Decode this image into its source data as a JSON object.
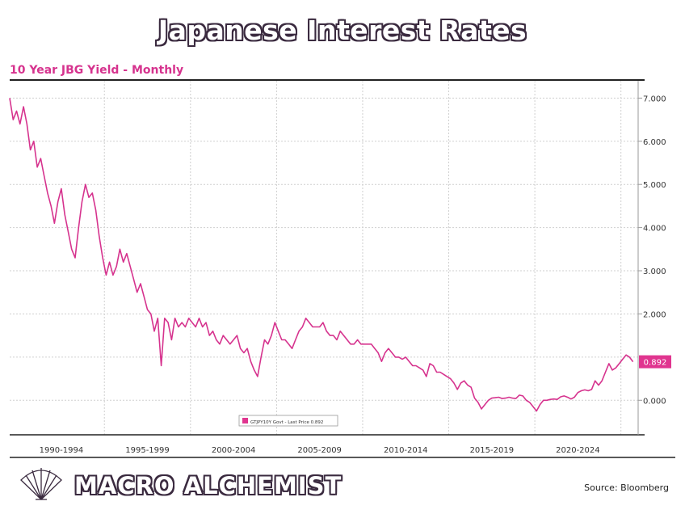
{
  "header": {
    "title": "Japanese Interest Rates",
    "subtitle": "10 Year JBG Yield - Monthly"
  },
  "footer": {
    "brand": "MACRO ALCHEMIST",
    "source": "Source: Bloomberg",
    "logo_icon": "shell-logo-icon"
  },
  "colors": {
    "line": "#d6338e",
    "accent": "#e0358f",
    "grid": "#cfcfcf"
  },
  "chart_data": {
    "type": "line",
    "title": "Japanese Interest Rates",
    "subtitle": "10 Year JBG Yield - Monthly",
    "ylim": [
      -0.8,
      7.4
    ],
    "xlim": [
      1989.0,
      2025.5
    ],
    "y_ticks": [
      {
        "value": 7.0,
        "label": "7.000"
      },
      {
        "value": 6.0,
        "label": "6.000"
      },
      {
        "value": 5.0,
        "label": "5.000"
      },
      {
        "value": 4.0,
        "label": "4.000"
      },
      {
        "value": 3.0,
        "label": "3.000"
      },
      {
        "value": 2.0,
        "label": "2.000"
      },
      {
        "value": 0.0,
        "label": "0.000"
      }
    ],
    "x_bands": [
      {
        "start": 1989.5,
        "label": "1990-1994"
      },
      {
        "start": 1994.5,
        "label": "1995-1999"
      },
      {
        "start": 1999.5,
        "label": "2000-2004"
      },
      {
        "start": 2004.5,
        "label": "2005-2009"
      },
      {
        "start": 2009.5,
        "label": "2010-2014"
      },
      {
        "start": 2014.5,
        "label": "2015-2019"
      },
      {
        "start": 2019.5,
        "label": "2020-2024"
      }
    ],
    "x_end": 2024.5,
    "grid": true,
    "last_value_label": "0.892",
    "legend": {
      "text": "GTJPY10Y Govt - Last Price 0.892",
      "placement": "bottom-center"
    },
    "series": [
      {
        "points": [
          [
            1989.0,
            7.0
          ],
          [
            1989.2,
            6.5
          ],
          [
            1989.4,
            6.7
          ],
          [
            1989.6,
            6.4
          ],
          [
            1989.8,
            6.8
          ],
          [
            1990.0,
            6.4
          ],
          [
            1990.2,
            5.8
          ],
          [
            1990.4,
            6.0
          ],
          [
            1990.6,
            5.4
          ],
          [
            1990.8,
            5.6
          ],
          [
            1991.0,
            5.2
          ],
          [
            1991.2,
            4.8
          ],
          [
            1991.4,
            4.5
          ],
          [
            1991.6,
            4.1
          ],
          [
            1991.8,
            4.6
          ],
          [
            1992.0,
            4.9
          ],
          [
            1992.2,
            4.3
          ],
          [
            1992.4,
            3.9
          ],
          [
            1992.6,
            3.5
          ],
          [
            1992.8,
            3.3
          ],
          [
            1993.0,
            4.0
          ],
          [
            1993.2,
            4.6
          ],
          [
            1993.4,
            5.0
          ],
          [
            1993.6,
            4.7
          ],
          [
            1993.8,
            4.8
          ],
          [
            1994.0,
            4.4
          ],
          [
            1994.2,
            3.8
          ],
          [
            1994.4,
            3.3
          ],
          [
            1994.6,
            2.9
          ],
          [
            1994.8,
            3.2
          ],
          [
            1995.0,
            2.9
          ],
          [
            1995.2,
            3.1
          ],
          [
            1995.4,
            3.5
          ],
          [
            1995.6,
            3.2
          ],
          [
            1995.8,
            3.4
          ],
          [
            1996.0,
            3.1
          ],
          [
            1996.2,
            2.8
          ],
          [
            1996.4,
            2.5
          ],
          [
            1996.6,
            2.7
          ],
          [
            1996.8,
            2.4
          ],
          [
            1997.0,
            2.1
          ],
          [
            1997.2,
            2.0
          ],
          [
            1997.4,
            1.6
          ],
          [
            1997.6,
            1.9
          ],
          [
            1997.8,
            0.8
          ],
          [
            1998.0,
            1.9
          ],
          [
            1998.2,
            1.8
          ],
          [
            1998.4,
            1.4
          ],
          [
            1998.6,
            1.9
          ],
          [
            1998.8,
            1.7
          ],
          [
            1999.0,
            1.8
          ],
          [
            1999.2,
            1.7
          ],
          [
            1999.4,
            1.9
          ],
          [
            1999.6,
            1.8
          ],
          [
            1999.8,
            1.7
          ],
          [
            2000.0,
            1.9
          ],
          [
            2000.2,
            1.7
          ],
          [
            2000.4,
            1.8
          ],
          [
            2000.6,
            1.5
          ],
          [
            2000.8,
            1.6
          ],
          [
            2001.0,
            1.4
          ],
          [
            2001.2,
            1.3
          ],
          [
            2001.4,
            1.5
          ],
          [
            2001.6,
            1.4
          ],
          [
            2001.8,
            1.3
          ],
          [
            2002.0,
            1.4
          ],
          [
            2002.2,
            1.5
          ],
          [
            2002.4,
            1.2
          ],
          [
            2002.6,
            1.1
          ],
          [
            2002.8,
            1.2
          ],
          [
            2003.0,
            0.9
          ],
          [
            2003.2,
            0.7
          ],
          [
            2003.4,
            0.55
          ],
          [
            2003.6,
            1.0
          ],
          [
            2003.8,
            1.4
          ],
          [
            2004.0,
            1.3
          ],
          [
            2004.2,
            1.5
          ],
          [
            2004.4,
            1.8
          ],
          [
            2004.6,
            1.6
          ],
          [
            2004.8,
            1.4
          ],
          [
            2005.0,
            1.4
          ],
          [
            2005.2,
            1.3
          ],
          [
            2005.4,
            1.2
          ],
          [
            2005.6,
            1.4
          ],
          [
            2005.8,
            1.6
          ],
          [
            2006.0,
            1.7
          ],
          [
            2006.2,
            1.9
          ],
          [
            2006.4,
            1.8
          ],
          [
            2006.6,
            1.7
          ],
          [
            2006.8,
            1.7
          ],
          [
            2007.0,
            1.7
          ],
          [
            2007.2,
            1.8
          ],
          [
            2007.4,
            1.6
          ],
          [
            2007.6,
            1.5
          ],
          [
            2007.8,
            1.5
          ],
          [
            2008.0,
            1.4
          ],
          [
            2008.2,
            1.6
          ],
          [
            2008.4,
            1.5
          ],
          [
            2008.6,
            1.4
          ],
          [
            2008.8,
            1.3
          ],
          [
            2009.0,
            1.3
          ],
          [
            2009.2,
            1.4
          ],
          [
            2009.4,
            1.3
          ],
          [
            2009.6,
            1.3
          ],
          [
            2009.8,
            1.3
          ],
          [
            2010.0,
            1.3
          ],
          [
            2010.2,
            1.2
          ],
          [
            2010.4,
            1.1
          ],
          [
            2010.6,
            0.9
          ],
          [
            2010.8,
            1.1
          ],
          [
            2011.0,
            1.2
          ],
          [
            2011.2,
            1.1
          ],
          [
            2011.4,
            1.0
          ],
          [
            2011.6,
            1.0
          ],
          [
            2011.8,
            0.95
          ],
          [
            2012.0,
            1.0
          ],
          [
            2012.2,
            0.9
          ],
          [
            2012.4,
            0.8
          ],
          [
            2012.6,
            0.8
          ],
          [
            2012.8,
            0.75
          ],
          [
            2013.0,
            0.7
          ],
          [
            2013.2,
            0.55
          ],
          [
            2013.4,
            0.85
          ],
          [
            2013.6,
            0.8
          ],
          [
            2013.8,
            0.65
          ],
          [
            2014.0,
            0.65
          ],
          [
            2014.2,
            0.6
          ],
          [
            2014.4,
            0.55
          ],
          [
            2014.6,
            0.5
          ],
          [
            2014.8,
            0.4
          ],
          [
            2015.0,
            0.25
          ],
          [
            2015.2,
            0.4
          ],
          [
            2015.4,
            0.45
          ],
          [
            2015.6,
            0.35
          ],
          [
            2015.8,
            0.3
          ],
          [
            2016.0,
            0.05
          ],
          [
            2016.2,
            -0.05
          ],
          [
            2016.4,
            -0.2
          ],
          [
            2016.6,
            -0.1
          ],
          [
            2016.8,
            0.0
          ],
          [
            2017.0,
            0.05
          ],
          [
            2017.2,
            0.06
          ],
          [
            2017.4,
            0.07
          ],
          [
            2017.6,
            0.04
          ],
          [
            2017.8,
            0.05
          ],
          [
            2018.0,
            0.07
          ],
          [
            2018.2,
            0.05
          ],
          [
            2018.4,
            0.04
          ],
          [
            2018.6,
            0.12
          ],
          [
            2018.8,
            0.1
          ],
          [
            2019.0,
            0.0
          ],
          [
            2019.2,
            -0.05
          ],
          [
            2019.4,
            -0.15
          ],
          [
            2019.6,
            -0.25
          ],
          [
            2019.8,
            -0.1
          ],
          [
            2020.0,
            0.0
          ],
          [
            2020.2,
            0.0
          ],
          [
            2020.4,
            0.02
          ],
          [
            2020.6,
            0.03
          ],
          [
            2020.8,
            0.02
          ],
          [
            2021.0,
            0.08
          ],
          [
            2021.2,
            0.1
          ],
          [
            2021.4,
            0.07
          ],
          [
            2021.6,
            0.03
          ],
          [
            2021.8,
            0.07
          ],
          [
            2022.0,
            0.18
          ],
          [
            2022.2,
            0.22
          ],
          [
            2022.4,
            0.24
          ],
          [
            2022.6,
            0.22
          ],
          [
            2022.8,
            0.25
          ],
          [
            2023.0,
            0.45
          ],
          [
            2023.2,
            0.35
          ],
          [
            2023.4,
            0.45
          ],
          [
            2023.6,
            0.65
          ],
          [
            2023.8,
            0.85
          ],
          [
            2024.0,
            0.7
          ],
          [
            2024.2,
            0.75
          ],
          [
            2024.4,
            0.85
          ],
          [
            2024.6,
            0.95
          ],
          [
            2024.8,
            1.05
          ],
          [
            2025.0,
            1.0
          ],
          [
            2025.2,
            0.892
          ]
        ]
      }
    ]
  }
}
